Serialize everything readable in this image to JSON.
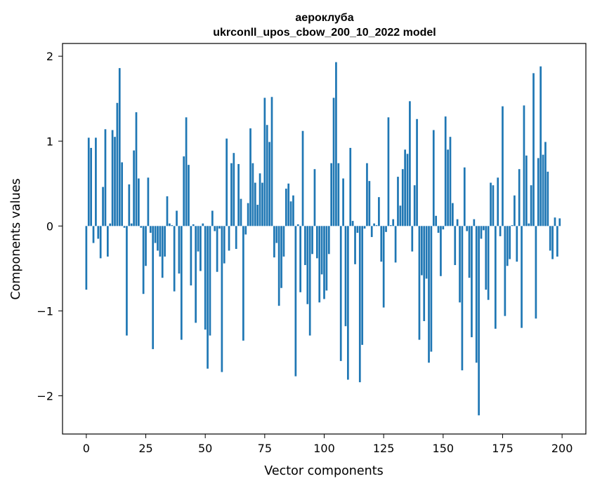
{
  "chart_data": {
    "type": "bar",
    "title": "аероклуба",
    "subtitle": "ukrconll_upos_cbow_200_10_2022 model",
    "xlabel": "Vector components",
    "ylabel": "Components values",
    "xlim": [
      -10,
      210
    ],
    "ylim": [
      -2.45,
      2.15
    ],
    "xticks": [
      0,
      25,
      50,
      75,
      100,
      125,
      150,
      175,
      200
    ],
    "yticks": [
      -2,
      -1,
      0,
      1,
      2
    ],
    "ytick_labels": [
      "−2",
      "−1",
      "0",
      "1",
      "2"
    ],
    "bar_color": "#1f77b4",
    "grid": false,
    "x": [
      0,
      1,
      2,
      3,
      4,
      5,
      6,
      7,
      8,
      9,
      10,
      11,
      12,
      13,
      14,
      15,
      16,
      17,
      18,
      19,
      20,
      21,
      22,
      23,
      24,
      25,
      26,
      27,
      28,
      29,
      30,
      31,
      32,
      33,
      34,
      35,
      36,
      37,
      38,
      39,
      40,
      41,
      42,
      43,
      44,
      45,
      46,
      47,
      48,
      49,
      50,
      51,
      52,
      53,
      54,
      55,
      56,
      57,
      58,
      59,
      60,
      61,
      62,
      63,
      64,
      65,
      66,
      67,
      68,
      69,
      70,
      71,
      72,
      73,
      74,
      75,
      76,
      77,
      78,
      79,
      80,
      81,
      82,
      83,
      84,
      85,
      86,
      87,
      88,
      89,
      90,
      91,
      92,
      93,
      94,
      95,
      96,
      97,
      98,
      99,
      100,
      101,
      102,
      103,
      104,
      105,
      106,
      107,
      108,
      109,
      110,
      111,
      112,
      113,
      114,
      115,
      116,
      117,
      118,
      119,
      120,
      121,
      122,
      123,
      124,
      125,
      126,
      127,
      128,
      129,
      130,
      131,
      132,
      133,
      134,
      135,
      136,
      137,
      138,
      139,
      140,
      141,
      142,
      143,
      144,
      145,
      146,
      147,
      148,
      149,
      150,
      151,
      152,
      153,
      154,
      155,
      156,
      157,
      158,
      159,
      160,
      161,
      162,
      163,
      164,
      165,
      166,
      167,
      168,
      169,
      170,
      171,
      172,
      173,
      174,
      175,
      176,
      177,
      178,
      179,
      180,
      181,
      182,
      183,
      184,
      185,
      186,
      187,
      188,
      189,
      190,
      191,
      192,
      193,
      194,
      195,
      196,
      197,
      198,
      199
    ],
    "values": [
      -0.75,
      1.04,
      0.92,
      -0.2,
      1.04,
      -0.15,
      -0.38,
      0.46,
      1.14,
      -0.36,
      0.03,
      1.13,
      1.05,
      1.45,
      1.86,
      0.75,
      -0.02,
      -1.29,
      0.49,
      0.03,
      0.89,
      1.34,
      0.56,
      -0.02,
      -0.8,
      -0.47,
      0.57,
      -0.08,
      -1.45,
      -0.2,
      -0.29,
      -0.36,
      -0.61,
      -0.36,
      0.35,
      0.03,
      0.01,
      -0.77,
      0.18,
      -0.56,
      -1.34,
      0.82,
      1.28,
      0.72,
      -0.7,
      0.02,
      -1.14,
      -0.3,
      -0.53,
      0.03,
      -1.22,
      -1.68,
      -1.29,
      0.18,
      -0.06,
      -0.54,
      -0.03,
      -1.72,
      -0.44,
      1.03,
      -0.29,
      0.74,
      0.86,
      -0.27,
      0.73,
      0.32,
      -1.35,
      -0.1,
      0.27,
      1.15,
      0.74,
      0.51,
      0.25,
      0.62,
      0.51,
      1.51,
      1.19,
      0.99,
      1.52,
      -0.37,
      -0.2,
      -0.94,
      -0.73,
      -0.36,
      0.44,
      0.5,
      0.29,
      0.36,
      -1.77,
      0.02,
      -0.78,
      1.12,
      -0.46,
      -0.92,
      -1.29,
      -0.33,
      0.67,
      -0.38,
      -0.9,
      -0.57,
      -0.86,
      -0.76,
      -0.33,
      0.74,
      1.51,
      1.93,
      0.74,
      -1.59,
      0.56,
      -1.18,
      -1.81,
      0.92,
      0.06,
      -0.45,
      -0.08,
      -1.84,
      -1.4,
      -0.03,
      0.74,
      0.53,
      -0.13,
      0.03,
      0.01,
      0.34,
      -0.42,
      -0.96,
      -0.07,
      1.28,
      0.01,
      0.08,
      -0.43,
      0.58,
      0.24,
      0.67,
      0.9,
      0.85,
      1.47,
      -0.3,
      0.48,
      1.26,
      -1.34,
      -0.58,
      -1.12,
      -0.62,
      -1.61,
      -1.48,
      1.13,
      0.12,
      -0.08,
      -0.59,
      -0.04,
      1.29,
      0.9,
      1.05,
      0.27,
      -0.46,
      0.08,
      -0.9,
      -1.7,
      0.69,
      -0.06,
      -0.61,
      -1.31,
      0.08,
      -1.61,
      -2.23,
      -0.15,
      -0.05,
      -0.75,
      -0.87,
      0.51,
      0.48,
      -1.21,
      0.57,
      -0.12,
      1.41,
      -1.06,
      -0.47,
      -0.39,
      0.01,
      0.36,
      -0.42,
      0.67,
      -1.2,
      1.42,
      0.83,
      0.03,
      0.48,
      1.8,
      -1.09,
      0.8,
      1.88,
      0.84,
      0.99,
      0.64,
      -0.29,
      -0.39,
      0.1,
      -0.36,
      0.09
    ]
  }
}
